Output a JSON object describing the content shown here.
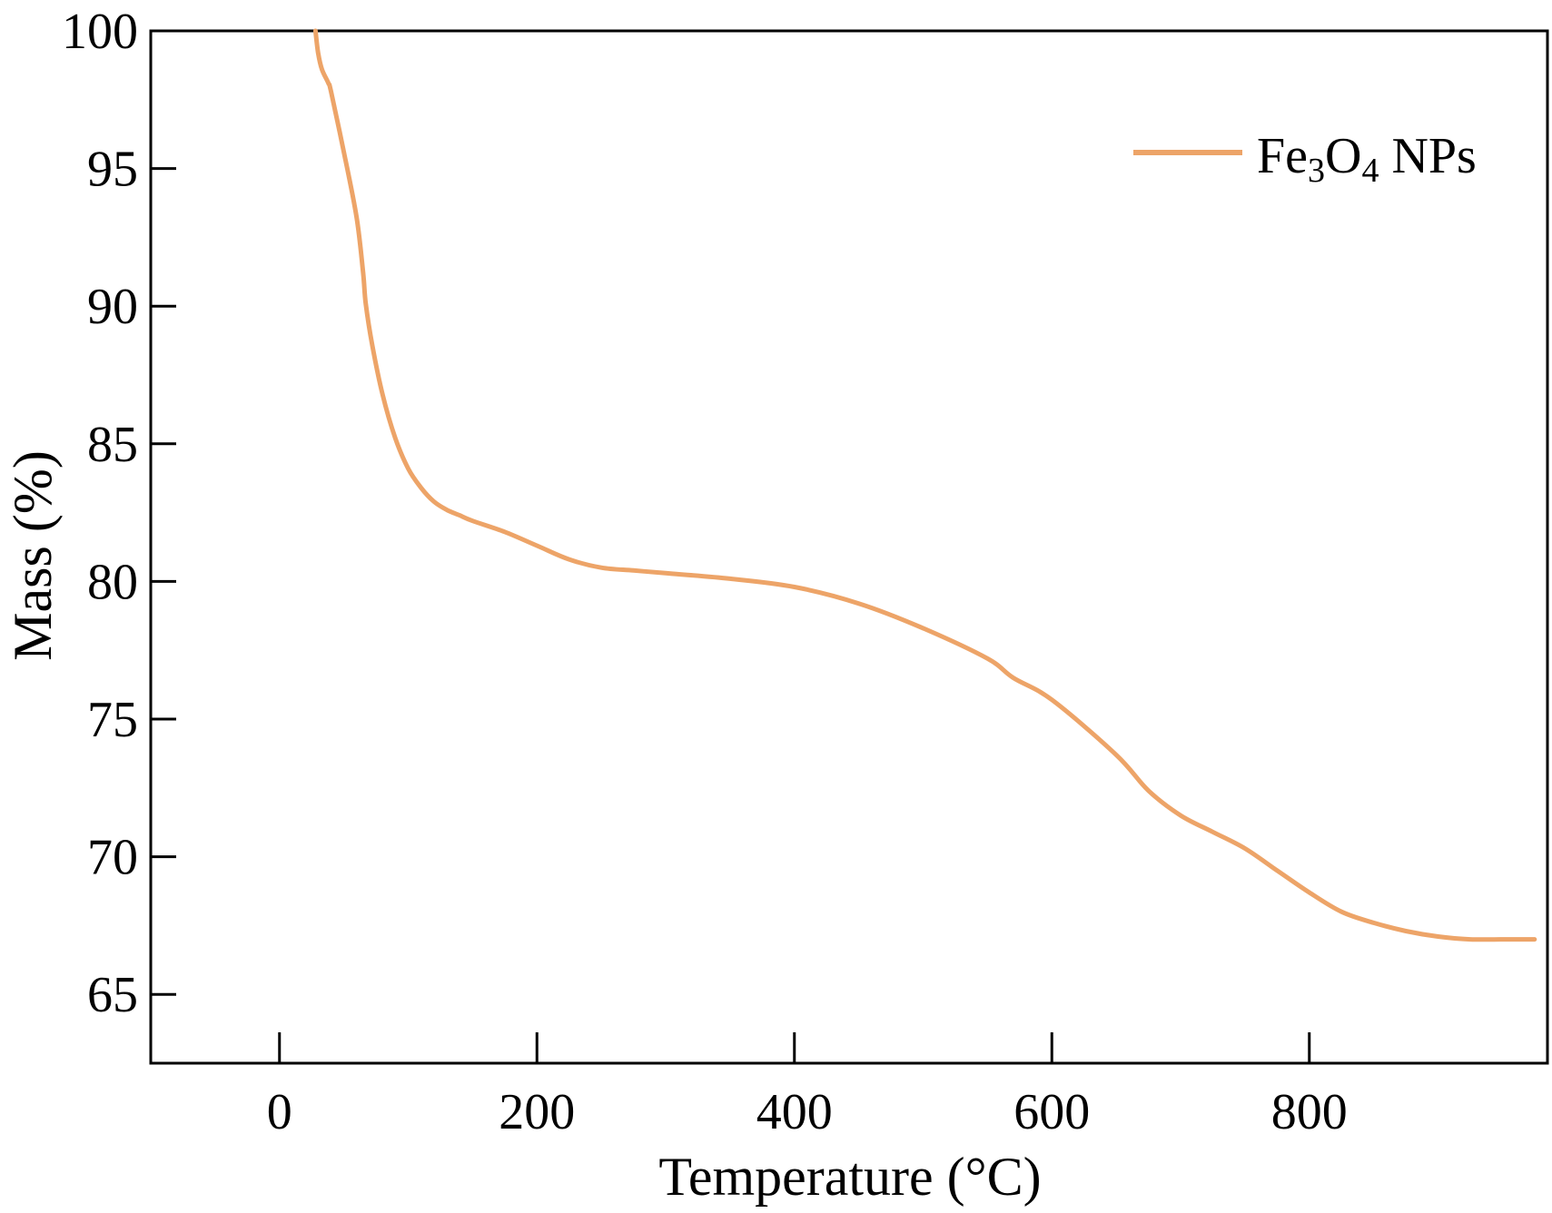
{
  "chart_data": {
    "type": "line",
    "title": "",
    "xlabel": "Temperature (°C)",
    "ylabel": "Mass (%)",
    "xlim": [
      -100,
      985
    ],
    "ylim": [
      62.5,
      100
    ],
    "xticks": [
      0,
      200,
      400,
      600,
      800
    ],
    "yticks": [
      65,
      70,
      75,
      80,
      85,
      90,
      95,
      100
    ],
    "grid": false,
    "legend": {
      "position": "top-right",
      "name_parts": [
        "Fe",
        "3",
        "O",
        "4",
        " NPs"
      ]
    },
    "series": [
      {
        "name": "Fe3O4 NPs",
        "color": "#eda468",
        "x": [
          28,
          30,
          33,
          38,
          40,
          50,
          60,
          65,
          67,
          72,
          80,
          90,
          100,
          110,
          120,
          130,
          140,
          150,
          175,
          200,
          225,
          250,
          275,
          300,
          350,
          400,
          450,
          500,
          550,
          570,
          600,
          650,
          675,
          700,
          725,
          750,
          775,
          800,
          825,
          850,
          875,
          900,
          925,
          950,
          975
        ],
        "y": [
          100,
          99.2,
          98.6,
          98.1,
          97.8,
          95.6,
          93.2,
          91.2,
          90.1,
          88.6,
          86.8,
          85.2,
          84.1,
          83.4,
          82.9,
          82.6,
          82.4,
          82.2,
          81.8,
          81.3,
          80.8,
          80.5,
          80.4,
          80.3,
          80.1,
          79.8,
          79.2,
          78.3,
          77.2,
          76.5,
          75.7,
          73.7,
          72.4,
          71.5,
          70.9,
          70.3,
          69.5,
          68.7,
          68.0,
          67.6,
          67.3,
          67.1,
          67.0,
          67.0,
          67.0
        ]
      }
    ]
  }
}
